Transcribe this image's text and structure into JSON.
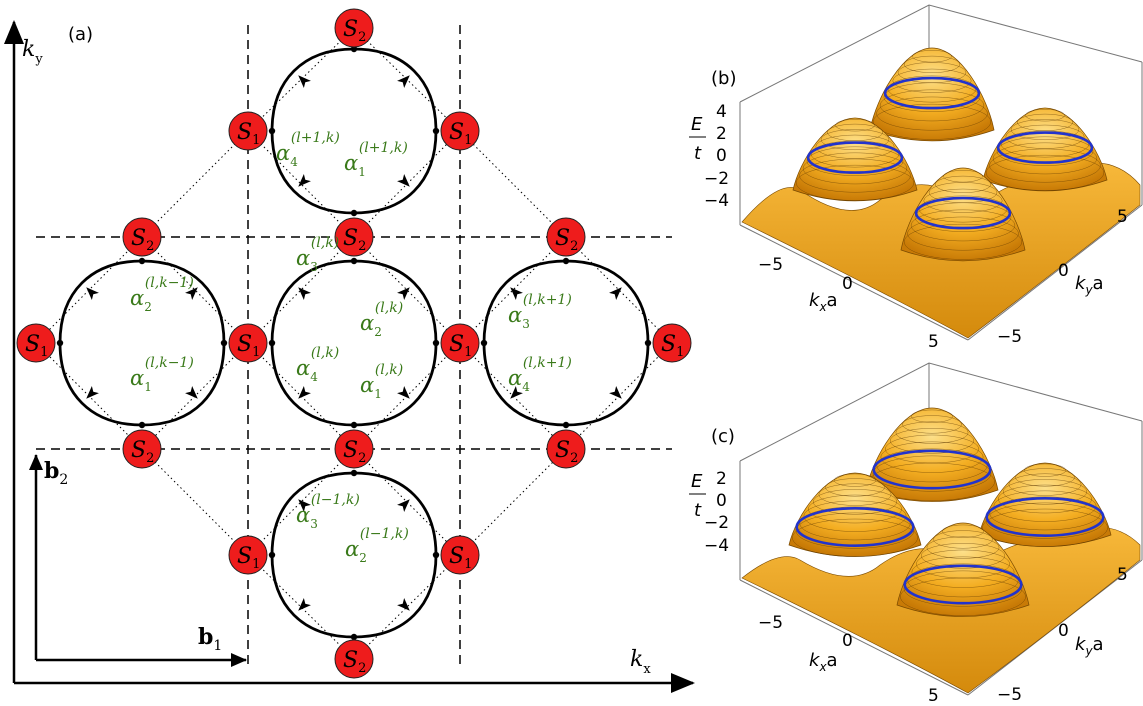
{
  "panel_a": {
    "label": "(a)",
    "axis_x": "k",
    "axis_x_sub": "x",
    "axis_y": "k",
    "axis_y_sub": "y",
    "b1": "b",
    "b1_sub": "1",
    "b2": "b",
    "b2_sub": "2",
    "node_s1": "S",
    "node_s1_sub": "1",
    "node_s2": "S",
    "node_s2_sub": "2",
    "alphas": [
      {
        "sub": "4",
        "sup": "(l+1,k)"
      },
      {
        "sub": "1",
        "sup": "(l+1,k)"
      },
      {
        "sub": "2",
        "sup": "(l,k−1)"
      },
      {
        "sub": "1",
        "sup": "(l,k−1)"
      },
      {
        "sub": "3",
        "sup": "(l,k)"
      },
      {
        "sub": "2",
        "sup": "(l,k)"
      },
      {
        "sub": "4",
        "sup": "(l,k)"
      },
      {
        "sub": "1",
        "sup": "(l,k)"
      },
      {
        "sub": "3",
        "sup": "(l,k+1)"
      },
      {
        "sub": "4",
        "sup": "(l,k+1)"
      },
      {
        "sub": "3",
        "sup": "(l−1,k)"
      },
      {
        "sub": "2",
        "sup": "(l−1,k)"
      }
    ],
    "colors": {
      "node_fill": "#ee1c1c",
      "alpha_text": "#3a7a1a"
    }
  },
  "panel_b": {
    "label": "(b)",
    "energy_num": "E",
    "energy_den": "t",
    "z_ticks": [
      "4",
      "2",
      "0",
      "−2",
      "−4"
    ],
    "kx_label": "k",
    "kx_sub": "x",
    "kx_unit": "a",
    "ky_label": "k",
    "ky_sub": "y",
    "ky_unit": "a",
    "kx_ticks": [
      "−5",
      "0",
      "5"
    ],
    "ky_ticks": [
      "5",
      "0",
      "−5"
    ]
  },
  "panel_c": {
    "label": "(c)",
    "energy_num": "E",
    "energy_den": "t",
    "z_ticks": [
      "2",
      "0",
      "−2",
      "−4"
    ],
    "kx_label": "k",
    "kx_sub": "x",
    "kx_unit": "a",
    "ky_label": "k",
    "ky_sub": "y",
    "ky_unit": "a",
    "kx_ticks": [
      "−5",
      "0",
      "5"
    ],
    "ky_ticks": [
      "5",
      "0",
      "−5"
    ]
  },
  "colors": {
    "surface": "#f2a81c",
    "surface_light": "#fcd56a",
    "contour": "#2233cc"
  }
}
